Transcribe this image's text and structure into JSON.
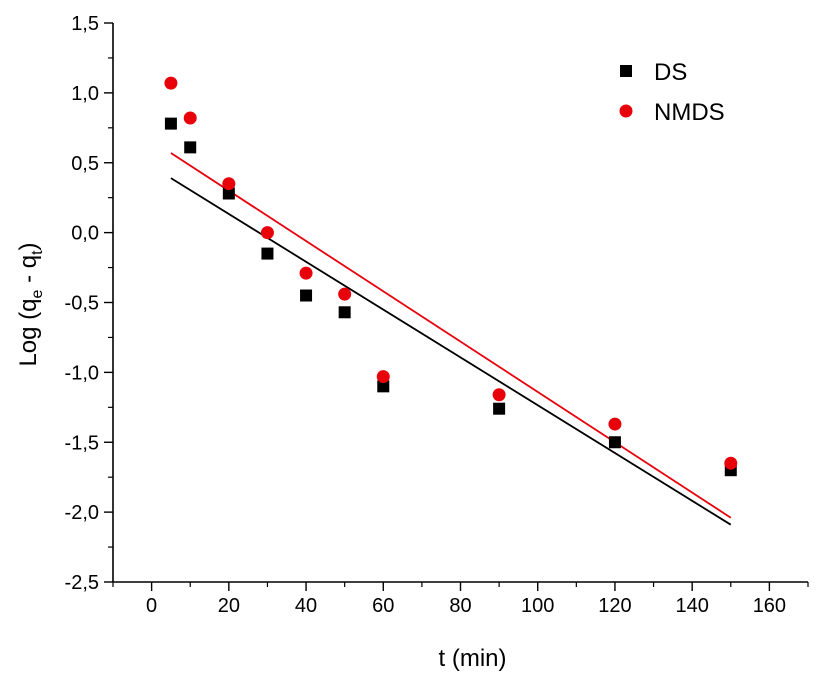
{
  "chart_data": {
    "type": "scatter",
    "xlabel": "t (min)",
    "ylabel_parts": {
      "main": "Log (q",
      "sub1": "e",
      "mid": " - q",
      "sub2": "t",
      "end": ")"
    },
    "xlim": [
      -10,
      170
    ],
    "ylim": [
      -2.5,
      1.5
    ],
    "x_ticks": [
      0,
      20,
      40,
      60,
      80,
      100,
      120,
      140,
      160
    ],
    "x_tick_labels": [
      "0",
      "20",
      "40",
      "60",
      "80",
      "100",
      "120",
      "140",
      "160"
    ],
    "y_ticks": [
      -2.5,
      -2.0,
      -1.5,
      -1.0,
      -0.5,
      0.0,
      0.5,
      1.0,
      1.5
    ],
    "y_tick_labels": [
      "-2,5",
      "-2,0",
      "-1,5",
      "-1,0",
      "-0,5",
      "0,0",
      "0,5",
      "1,0",
      "1,5"
    ],
    "grid": false,
    "legend_position": "top-right",
    "series": [
      {
        "name": "DS",
        "marker": "square",
        "color": "#000000",
        "x": [
          5,
          10,
          20,
          30,
          40,
          50,
          60,
          90,
          120,
          150
        ],
        "y": [
          0.78,
          0.61,
          0.28,
          -0.15,
          -0.45,
          -0.57,
          -1.1,
          -1.26,
          -1.5,
          -1.7
        ],
        "fit_line": {
          "x": [
            5,
            150
          ],
          "y": [
            0.39,
            -2.09
          ]
        }
      },
      {
        "name": "NMDS",
        "marker": "circle",
        "color": "#e8000b",
        "x": [
          5,
          10,
          20,
          30,
          40,
          50,
          60,
          90,
          120,
          150
        ],
        "y": [
          1.07,
          0.82,
          0.35,
          0.0,
          -0.29,
          -0.44,
          -1.03,
          -1.16,
          -1.37,
          -1.65
        ],
        "fit_line": {
          "x": [
            5,
            150
          ],
          "y": [
            0.57,
            -2.04
          ]
        }
      }
    ]
  }
}
